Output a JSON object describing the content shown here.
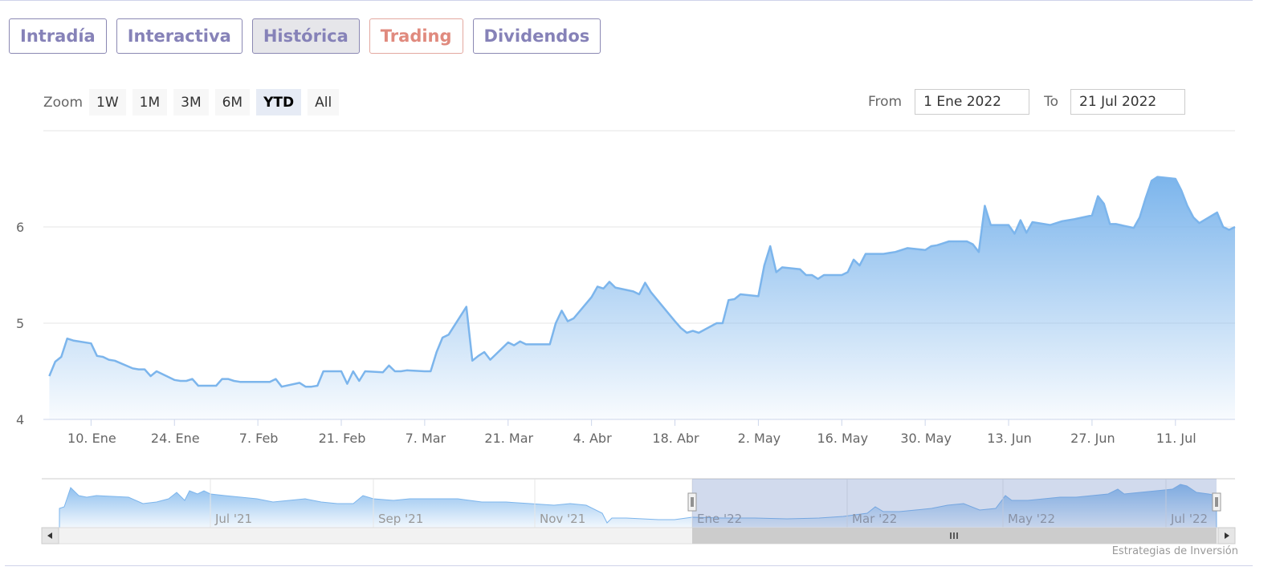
{
  "tabs": [
    {
      "label": "Intradía"
    },
    {
      "label": "Interactiva"
    },
    {
      "label": "Histórica"
    },
    {
      "label": "Trading"
    },
    {
      "label": "Dividendos"
    }
  ],
  "zoom": {
    "label": "Zoom",
    "buttons": [
      "1W",
      "1M",
      "3M",
      "6M",
      "YTD",
      "All"
    ],
    "selected": "YTD"
  },
  "range": {
    "from_label": "From",
    "from_value": "1 Ene 2022",
    "to_label": "To",
    "to_value": "21 Jul 2022"
  },
  "credit": "Estrategias de Inversión",
  "colors": {
    "line": "#7cb5ec",
    "accent": "#8682b8",
    "trading": "#e08a7e"
  },
  "chart_data": {
    "type": "area",
    "title": "",
    "xlabel": "",
    "ylabel": "",
    "ylim": [
      4,
      6.9
    ],
    "y_ticks": [
      4,
      5,
      6
    ],
    "x_ticks": [
      "10. Ene",
      "24. Ene",
      "7. Feb",
      "21. Feb",
      "7. Mar",
      "21. Mar",
      "4. Abr",
      "18. Abr",
      "2. May",
      "16. May",
      "30. May",
      "13. Jun",
      "27. Jun",
      "11. Jul"
    ],
    "grid": true,
    "series": [
      {
        "x": [
          "2022-01-03",
          "2022-01-04",
          "2022-01-05",
          "2022-01-06",
          "2022-01-07",
          "2022-01-10",
          "2022-01-11",
          "2022-01-12",
          "2022-01-13",
          "2022-01-14",
          "2022-01-17",
          "2022-01-18",
          "2022-01-19",
          "2022-01-20",
          "2022-01-21",
          "2022-01-24",
          "2022-01-25",
          "2022-01-26",
          "2022-01-27",
          "2022-01-28",
          "2022-01-31",
          "2022-02-01",
          "2022-02-02",
          "2022-02-03",
          "2022-02-04",
          "2022-02-07",
          "2022-02-08",
          "2022-02-09",
          "2022-02-10",
          "2022-02-11",
          "2022-02-14",
          "2022-02-15",
          "2022-02-16",
          "2022-02-17",
          "2022-02-18",
          "2022-02-21",
          "2022-02-22",
          "2022-02-23",
          "2022-02-24",
          "2022-02-25",
          "2022-02-28",
          "2022-03-01",
          "2022-03-02",
          "2022-03-03",
          "2022-03-04",
          "2022-03-07",
          "2022-03-08",
          "2022-03-09",
          "2022-03-10",
          "2022-03-11",
          "2022-03-14",
          "2022-03-15",
          "2022-03-16",
          "2022-03-17",
          "2022-03-18",
          "2022-03-21",
          "2022-03-22",
          "2022-03-23",
          "2022-03-24",
          "2022-03-25",
          "2022-03-28",
          "2022-03-29",
          "2022-03-30",
          "2022-03-31",
          "2022-04-01",
          "2022-04-04",
          "2022-04-05",
          "2022-04-06",
          "2022-04-07",
          "2022-04-08",
          "2022-04-11",
          "2022-04-12",
          "2022-04-13",
          "2022-04-14",
          "2022-04-18",
          "2022-04-19",
          "2022-04-20",
          "2022-04-21",
          "2022-04-22",
          "2022-04-25",
          "2022-04-26",
          "2022-04-27",
          "2022-04-28",
          "2022-04-29",
          "2022-05-02",
          "2022-05-03",
          "2022-05-04",
          "2022-05-05",
          "2022-05-06",
          "2022-05-09",
          "2022-05-10",
          "2022-05-11",
          "2022-05-12",
          "2022-05-13",
          "2022-05-16",
          "2022-05-17",
          "2022-05-18",
          "2022-05-19",
          "2022-05-20",
          "2022-05-23",
          "2022-05-24",
          "2022-05-25",
          "2022-05-26",
          "2022-05-27",
          "2022-05-30",
          "2022-05-31",
          "2022-06-01",
          "2022-06-02",
          "2022-06-03",
          "2022-06-06",
          "2022-06-07",
          "2022-06-08",
          "2022-06-09",
          "2022-06-10",
          "2022-06-13",
          "2022-06-14",
          "2022-06-15",
          "2022-06-16",
          "2022-06-17",
          "2022-06-20",
          "2022-06-21",
          "2022-06-22",
          "2022-06-23",
          "2022-06-24",
          "2022-06-27",
          "2022-06-28",
          "2022-06-29",
          "2022-06-30",
          "2022-07-01",
          "2022-07-04",
          "2022-07-05",
          "2022-07-06",
          "2022-07-07",
          "2022-07-08",
          "2022-07-11",
          "2022-07-12",
          "2022-07-13",
          "2022-07-14",
          "2022-07-15",
          "2022-07-18",
          "2022-07-19",
          "2022-07-20",
          "2022-07-21"
        ],
        "values": [
          4.45,
          4.6,
          4.65,
          4.84,
          4.82,
          4.79,
          4.66,
          4.65,
          4.62,
          4.61,
          4.53,
          4.52,
          4.52,
          4.45,
          4.5,
          4.41,
          4.4,
          4.4,
          4.42,
          4.35,
          4.35,
          4.42,
          4.42,
          4.4,
          4.39,
          4.39,
          4.39,
          4.39,
          4.42,
          4.34,
          4.38,
          4.34,
          4.34,
          4.35,
          4.5,
          4.5,
          4.37,
          4.5,
          4.4,
          4.5,
          4.49,
          4.56,
          4.5,
          4.5,
          4.51,
          4.5,
          4.5,
          4.7,
          4.85,
          4.88,
          5.17,
          4.61,
          4.66,
          4.7,
          4.62,
          4.8,
          4.77,
          4.81,
          4.78,
          4.78,
          4.78,
          5.0,
          5.13,
          5.02,
          5.05,
          5.27,
          5.38,
          5.36,
          5.43,
          5.37,
          5.33,
          5.3,
          5.42,
          5.32,
          5.02,
          4.95,
          4.9,
          4.92,
          4.9,
          5.0,
          5.0,
          5.24,
          5.25,
          5.3,
          5.28,
          5.6,
          5.8,
          5.53,
          5.58,
          5.56,
          5.5,
          5.5,
          5.46,
          5.5,
          5.5,
          5.53,
          5.66,
          5.6,
          5.72,
          5.72,
          5.73,
          5.74,
          5.76,
          5.78,
          5.76,
          5.8,
          5.81,
          5.83,
          5.85,
          5.85,
          5.82,
          5.74,
          6.22,
          6.02,
          6.02,
          5.93,
          6.07,
          5.94,
          6.05,
          6.02,
          6.04,
          6.06,
          6.07,
          6.08,
          6.12,
          6.32,
          6.24,
          6.03,
          6.03,
          5.99,
          6.1,
          6.3,
          6.48,
          6.52,
          6.5,
          6.38,
          6.22,
          6.1,
          6.04,
          6.15,
          6.0,
          5.97,
          6.0
        ]
      }
    ],
    "navigator": {
      "x_ticks": [
        "Jul '21",
        "Sep '21",
        "Nov '21",
        "Ene '22",
        "Mar '22",
        "May '22",
        "Jul '22"
      ]
    }
  }
}
